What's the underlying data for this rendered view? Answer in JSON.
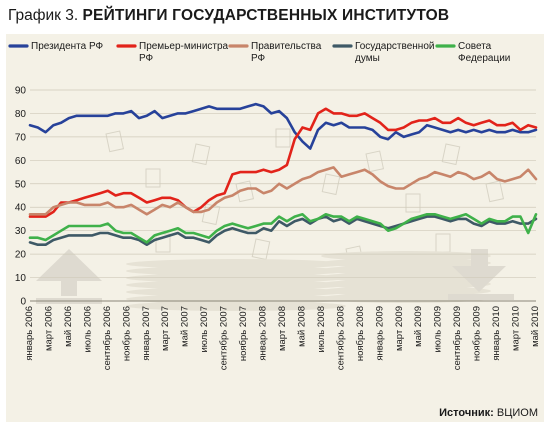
{
  "title": {
    "number": "График 3.",
    "text": "РЕЙТИНГИ ГОСУДАРСТВЕННЫХ ИНСТИТУТОВ"
  },
  "source": {
    "label": "Источник:",
    "value": "ВЦИОМ"
  },
  "chart_data": {
    "type": "line",
    "ylim": [
      0,
      90
    ],
    "yticks": [
      0,
      10,
      20,
      30,
      40,
      50,
      60,
      70,
      80,
      90
    ],
    "grid": true,
    "legend_position": "top",
    "x_tick_labels": [
      "январь 2006",
      "март 2006",
      "май 2006",
      "июль 2006",
      "сентябрь 2006",
      "ноябрь 2006",
      "январь 2007",
      "март 2007",
      "май 2007",
      "июль 2007",
      "сентябрь 2007",
      "ноябрь 2007",
      "январь 2008",
      "март 2008",
      "май 2008",
      "июль 2008",
      "сентябрь 2008",
      "ноябрь 2008",
      "январь 2009",
      "март 2009",
      "май 2009",
      "июль 2009",
      "сентябрь 2009",
      "ноябрь 2009",
      "январь 2010",
      "март 2010",
      "май 2010"
    ],
    "series": [
      {
        "name": "Президента РФ",
        "color": "#27429a",
        "points": [
          [
            0,
            75
          ],
          [
            1,
            74
          ],
          [
            2,
            72
          ],
          [
            3,
            75
          ],
          [
            4,
            76
          ],
          [
            5,
            78
          ],
          [
            6,
            79
          ],
          [
            7,
            79
          ],
          [
            8,
            79
          ],
          [
            9,
            79
          ],
          [
            10,
            79
          ],
          [
            11,
            80
          ],
          [
            12,
            80
          ],
          [
            13,
            81
          ],
          [
            14,
            78
          ],
          [
            15,
            79
          ],
          [
            16,
            81
          ],
          [
            17,
            78
          ],
          [
            18,
            79
          ],
          [
            19,
            80
          ],
          [
            20,
            80
          ],
          [
            21,
            81
          ],
          [
            22,
            82
          ],
          [
            23,
            83
          ],
          [
            24,
            82
          ],
          [
            25,
            82
          ],
          [
            26,
            82
          ],
          [
            27,
            82
          ],
          [
            28,
            83
          ],
          [
            29,
            84
          ],
          [
            30,
            83
          ],
          [
            31,
            80
          ],
          [
            32,
            81
          ],
          [
            33,
            78
          ],
          [
            34,
            72
          ],
          [
            35,
            68
          ],
          [
            36,
            65
          ],
          [
            37,
            73
          ],
          [
            38,
            76
          ],
          [
            39,
            75
          ],
          [
            40,
            76
          ],
          [
            41,
            74
          ],
          [
            42,
            74
          ],
          [
            43,
            74
          ],
          [
            44,
            73
          ],
          [
            45,
            70
          ],
          [
            46,
            69
          ],
          [
            47,
            72
          ],
          [
            48,
            70
          ],
          [
            49,
            71
          ],
          [
            50,
            72
          ],
          [
            51,
            75
          ],
          [
            52,
            74
          ],
          [
            53,
            73
          ],
          [
            54,
            72
          ],
          [
            55,
            73
          ],
          [
            56,
            72
          ],
          [
            57,
            73
          ],
          [
            58,
            72
          ],
          [
            59,
            73
          ],
          [
            60,
            72
          ],
          [
            61,
            72
          ],
          [
            62,
            73
          ],
          [
            63,
            72
          ],
          [
            64,
            72
          ],
          [
            65,
            73
          ]
        ]
      },
      {
        "name": "Премьер-министра РФ",
        "color": "#e2231a",
        "points": [
          [
            0,
            36
          ],
          [
            1,
            36
          ],
          [
            2,
            36
          ],
          [
            3,
            38
          ],
          [
            4,
            42
          ],
          [
            5,
            42
          ],
          [
            6,
            43
          ],
          [
            7,
            44
          ],
          [
            8,
            45
          ],
          [
            9,
            46
          ],
          [
            10,
            47
          ],
          [
            11,
            45
          ],
          [
            12,
            46
          ],
          [
            13,
            46
          ],
          [
            14,
            44
          ],
          [
            15,
            42
          ],
          [
            16,
            43
          ],
          [
            17,
            44
          ],
          [
            18,
            44
          ],
          [
            19,
            43
          ],
          [
            20,
            40
          ],
          [
            21,
            38
          ],
          [
            22,
            40
          ],
          [
            23,
            43
          ],
          [
            24,
            45
          ],
          [
            25,
            46
          ],
          [
            26,
            54
          ],
          [
            27,
            55
          ],
          [
            28,
            55
          ],
          [
            29,
            55
          ],
          [
            30,
            56
          ],
          [
            31,
            55
          ],
          [
            32,
            56
          ],
          [
            33,
            58
          ],
          [
            34,
            69
          ],
          [
            35,
            74
          ],
          [
            36,
            73
          ],
          [
            37,
            80
          ],
          [
            38,
            82
          ],
          [
            39,
            80
          ],
          [
            40,
            80
          ],
          [
            41,
            79
          ],
          [
            42,
            79
          ],
          [
            43,
            80
          ],
          [
            44,
            78
          ],
          [
            45,
            76
          ],
          [
            46,
            73
          ],
          [
            47,
            73
          ],
          [
            48,
            74
          ],
          [
            49,
            76
          ],
          [
            50,
            77
          ],
          [
            51,
            77
          ],
          [
            52,
            78
          ],
          [
            53,
            76
          ],
          [
            54,
            76
          ],
          [
            55,
            78
          ],
          [
            56,
            76
          ],
          [
            57,
            75
          ],
          [
            58,
            76
          ],
          [
            59,
            77
          ],
          [
            60,
            75
          ],
          [
            61,
            75
          ],
          [
            62,
            76
          ],
          [
            63,
            73
          ],
          [
            64,
            75
          ],
          [
            65,
            74
          ]
        ]
      },
      {
        "name": "Правительства РФ",
        "color": "#c8856a",
        "points": [
          [
            0,
            37
          ],
          [
            1,
            37
          ],
          [
            2,
            37
          ],
          [
            3,
            40
          ],
          [
            4,
            41
          ],
          [
            5,
            42
          ],
          [
            6,
            42
          ],
          [
            7,
            41
          ],
          [
            8,
            41
          ],
          [
            9,
            41
          ],
          [
            10,
            42
          ],
          [
            11,
            40
          ],
          [
            12,
            40
          ],
          [
            13,
            41
          ],
          [
            14,
            39
          ],
          [
            15,
            37
          ],
          [
            16,
            39
          ],
          [
            17,
            41
          ],
          [
            18,
            40
          ],
          [
            19,
            42
          ],
          [
            20,
            40
          ],
          [
            21,
            38
          ],
          [
            22,
            38
          ],
          [
            23,
            39
          ],
          [
            24,
            42
          ],
          [
            25,
            44
          ],
          [
            26,
            45
          ],
          [
            27,
            47
          ],
          [
            28,
            48
          ],
          [
            29,
            48
          ],
          [
            30,
            46
          ],
          [
            31,
            47
          ],
          [
            32,
            50
          ],
          [
            33,
            48
          ],
          [
            34,
            50
          ],
          [
            35,
            52
          ],
          [
            36,
            53
          ],
          [
            37,
            55
          ],
          [
            38,
            56
          ],
          [
            39,
            57
          ],
          [
            40,
            53
          ],
          [
            41,
            54
          ],
          [
            42,
            55
          ],
          [
            43,
            56
          ],
          [
            44,
            54
          ],
          [
            45,
            51
          ],
          [
            46,
            49
          ],
          [
            47,
            48
          ],
          [
            48,
            48
          ],
          [
            49,
            50
          ],
          [
            50,
            52
          ],
          [
            51,
            53
          ],
          [
            52,
            55
          ],
          [
            53,
            54
          ],
          [
            54,
            53
          ],
          [
            55,
            55
          ],
          [
            56,
            54
          ],
          [
            57,
            52
          ],
          [
            58,
            53
          ],
          [
            59,
            55
          ],
          [
            60,
            52
          ],
          [
            61,
            51
          ],
          [
            62,
            52
          ],
          [
            63,
            53
          ],
          [
            64,
            56
          ],
          [
            65,
            52
          ]
        ]
      },
      {
        "name": "Государственной думы",
        "color": "#3e5966",
        "points": [
          [
            0,
            25
          ],
          [
            1,
            24
          ],
          [
            2,
            24
          ],
          [
            3,
            26
          ],
          [
            4,
            27
          ],
          [
            5,
            28
          ],
          [
            6,
            28
          ],
          [
            7,
            28
          ],
          [
            8,
            28
          ],
          [
            9,
            29
          ],
          [
            10,
            29
          ],
          [
            11,
            28
          ],
          [
            12,
            27
          ],
          [
            13,
            27
          ],
          [
            14,
            26
          ],
          [
            15,
            24
          ],
          [
            16,
            26
          ],
          [
            17,
            27
          ],
          [
            18,
            28
          ],
          [
            19,
            29
          ],
          [
            20,
            27
          ],
          [
            21,
            27
          ],
          [
            22,
            26
          ],
          [
            23,
            25
          ],
          [
            24,
            28
          ],
          [
            25,
            30
          ],
          [
            26,
            31
          ],
          [
            27,
            30
          ],
          [
            28,
            29
          ],
          [
            29,
            29
          ],
          [
            30,
            31
          ],
          [
            31,
            30
          ],
          [
            32,
            34
          ],
          [
            33,
            32
          ],
          [
            34,
            34
          ],
          [
            35,
            35
          ],
          [
            36,
            33
          ],
          [
            37,
            35
          ],
          [
            38,
            36
          ],
          [
            39,
            34
          ],
          [
            40,
            35
          ],
          [
            41,
            33
          ],
          [
            42,
            35
          ],
          [
            43,
            34
          ],
          [
            44,
            33
          ],
          [
            45,
            32
          ],
          [
            46,
            31
          ],
          [
            47,
            32
          ],
          [
            48,
            33
          ],
          [
            49,
            34
          ],
          [
            50,
            35
          ],
          [
            51,
            36
          ],
          [
            52,
            36
          ],
          [
            53,
            35
          ],
          [
            54,
            34
          ],
          [
            55,
            35
          ],
          [
            56,
            35
          ],
          [
            57,
            33
          ],
          [
            58,
            32
          ],
          [
            59,
            34
          ],
          [
            60,
            33
          ],
          [
            61,
            33
          ],
          [
            62,
            34
          ],
          [
            63,
            33
          ],
          [
            64,
            33
          ],
          [
            65,
            35
          ]
        ]
      },
      {
        "name": "Совета Федерации",
        "color": "#3fb14a",
        "points": [
          [
            0,
            27
          ],
          [
            1,
            27
          ],
          [
            2,
            26
          ],
          [
            3,
            28
          ],
          [
            4,
            30
          ],
          [
            5,
            32
          ],
          [
            6,
            32
          ],
          [
            7,
            32
          ],
          [
            8,
            32
          ],
          [
            9,
            32
          ],
          [
            10,
            33
          ],
          [
            11,
            30
          ],
          [
            12,
            29
          ],
          [
            13,
            29
          ],
          [
            14,
            27
          ],
          [
            15,
            25
          ],
          [
            16,
            28
          ],
          [
            17,
            29
          ],
          [
            18,
            30
          ],
          [
            19,
            31
          ],
          [
            20,
            29
          ],
          [
            21,
            29
          ],
          [
            22,
            28
          ],
          [
            23,
            27
          ],
          [
            24,
            30
          ],
          [
            25,
            32
          ],
          [
            26,
            33
          ],
          [
            27,
            32
          ],
          [
            28,
            31
          ],
          [
            29,
            32
          ],
          [
            30,
            33
          ],
          [
            31,
            33
          ],
          [
            32,
            36
          ],
          [
            33,
            34
          ],
          [
            34,
            36
          ],
          [
            35,
            37
          ],
          [
            36,
            34
          ],
          [
            37,
            35
          ],
          [
            38,
            37
          ],
          [
            39,
            36
          ],
          [
            40,
            36
          ],
          [
            41,
            34
          ],
          [
            42,
            36
          ],
          [
            43,
            35
          ],
          [
            44,
            34
          ],
          [
            45,
            33
          ],
          [
            46,
            30
          ],
          [
            47,
            31
          ],
          [
            48,
            33
          ],
          [
            49,
            35
          ],
          [
            50,
            36
          ],
          [
            51,
            37
          ],
          [
            52,
            37
          ],
          [
            53,
            36
          ],
          [
            54,
            35
          ],
          [
            55,
            36
          ],
          [
            56,
            37
          ],
          [
            57,
            35
          ],
          [
            58,
            33
          ],
          [
            59,
            35
          ],
          [
            60,
            34
          ],
          [
            61,
            34
          ],
          [
            62,
            36
          ],
          [
            63,
            36
          ],
          [
            64,
            29
          ],
          [
            65,
            37
          ]
        ]
      }
    ]
  }
}
